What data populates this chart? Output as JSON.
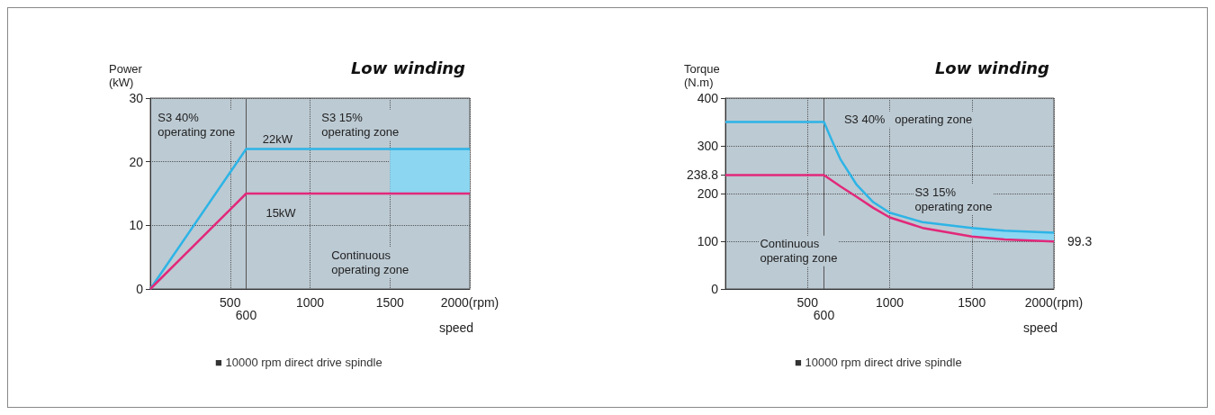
{
  "chart_data": [
    {
      "type": "line",
      "title": "Low winding",
      "ylabel": "Power\n(kW)",
      "xlabel": "speed",
      "xlim": [
        0,
        2000
      ],
      "xticks": [
        500,
        1000,
        1500,
        {
          "value": 2000,
          "label": "2000(rpm)"
        }
      ],
      "ylim": [
        0,
        30
      ],
      "yticks": [
        0,
        10,
        20,
        30
      ],
      "grid": true,
      "ref_lines": [
        {
          "axis": "x",
          "value": 600,
          "label": "600"
        }
      ],
      "series": [
        {
          "color": "#2db4e6",
          "x": [
            0,
            600,
            1500,
            2000
          ],
          "values": [
            0,
            22,
            22,
            22
          ],
          "lower": [
            null,
            null,
            15,
            15
          ],
          "upper": [
            null,
            null,
            22,
            22
          ]
        },
        {
          "color": "#e2287a",
          "x": [
            0,
            600,
            2000
          ],
          "values": [
            0,
            15,
            15
          ]
        }
      ],
      "annotations": [
        "S3 40%\noperating zone",
        "S3 15%\noperating zone",
        "22kW",
        "15kW",
        "Continuous\noperating zone",
        "■ 10000 rpm direct drive spindle"
      ]
    },
    {
      "type": "line",
      "title": "Low winding",
      "ylabel": "Torque\n(N.m)",
      "xlabel": "speed",
      "xlim": [
        0,
        2000
      ],
      "xticks": [
        500,
        1000,
        1500,
        {
          "value": 2000,
          "label": "2000(rpm)"
        }
      ],
      "ylim": [
        0,
        400
      ],
      "yticks": [
        0,
        100,
        200,
        238.8,
        300,
        400
      ],
      "grid": true,
      "ref_lines": [
        {
          "axis": "x",
          "value": 600,
          "label": "600"
        }
      ],
      "series": [
        {
          "color": "#2db4e6",
          "x": [
            0,
            600,
            650,
            700,
            800,
            900,
            1000,
            1200,
            1500,
            1700,
            2000
          ],
          "values": [
            350,
            350,
            310,
            272,
            218,
            182,
            160,
            140,
            128,
            122,
            118
          ],
          "lower": [
            null,
            null,
            null,
            null,
            null,
            null,
            null,
            null,
            110,
            104,
            99.3
          ],
          "upper": [
            null,
            null,
            null,
            null,
            null,
            null,
            null,
            null,
            128,
            122,
            118
          ]
        },
        {
          "color": "#e2287a",
          "x": [
            0,
            600,
            700,
            800,
            900,
            1000,
            1200,
            1500,
            1700,
            2000
          ],
          "values": [
            238.8,
            238.8,
            215,
            193,
            170,
            150,
            128,
            110,
            104,
            99.3
          ]
        }
      ],
      "annotations": [
        "S3 40%   operating zone",
        "S3 15%\noperating zone",
        "Continuous\noperating zone",
        {
          "text": "99.3",
          "x": 2000,
          "y": 99.3
        },
        "■ 10000 rpm direct drive spindle"
      ]
    }
  ]
}
